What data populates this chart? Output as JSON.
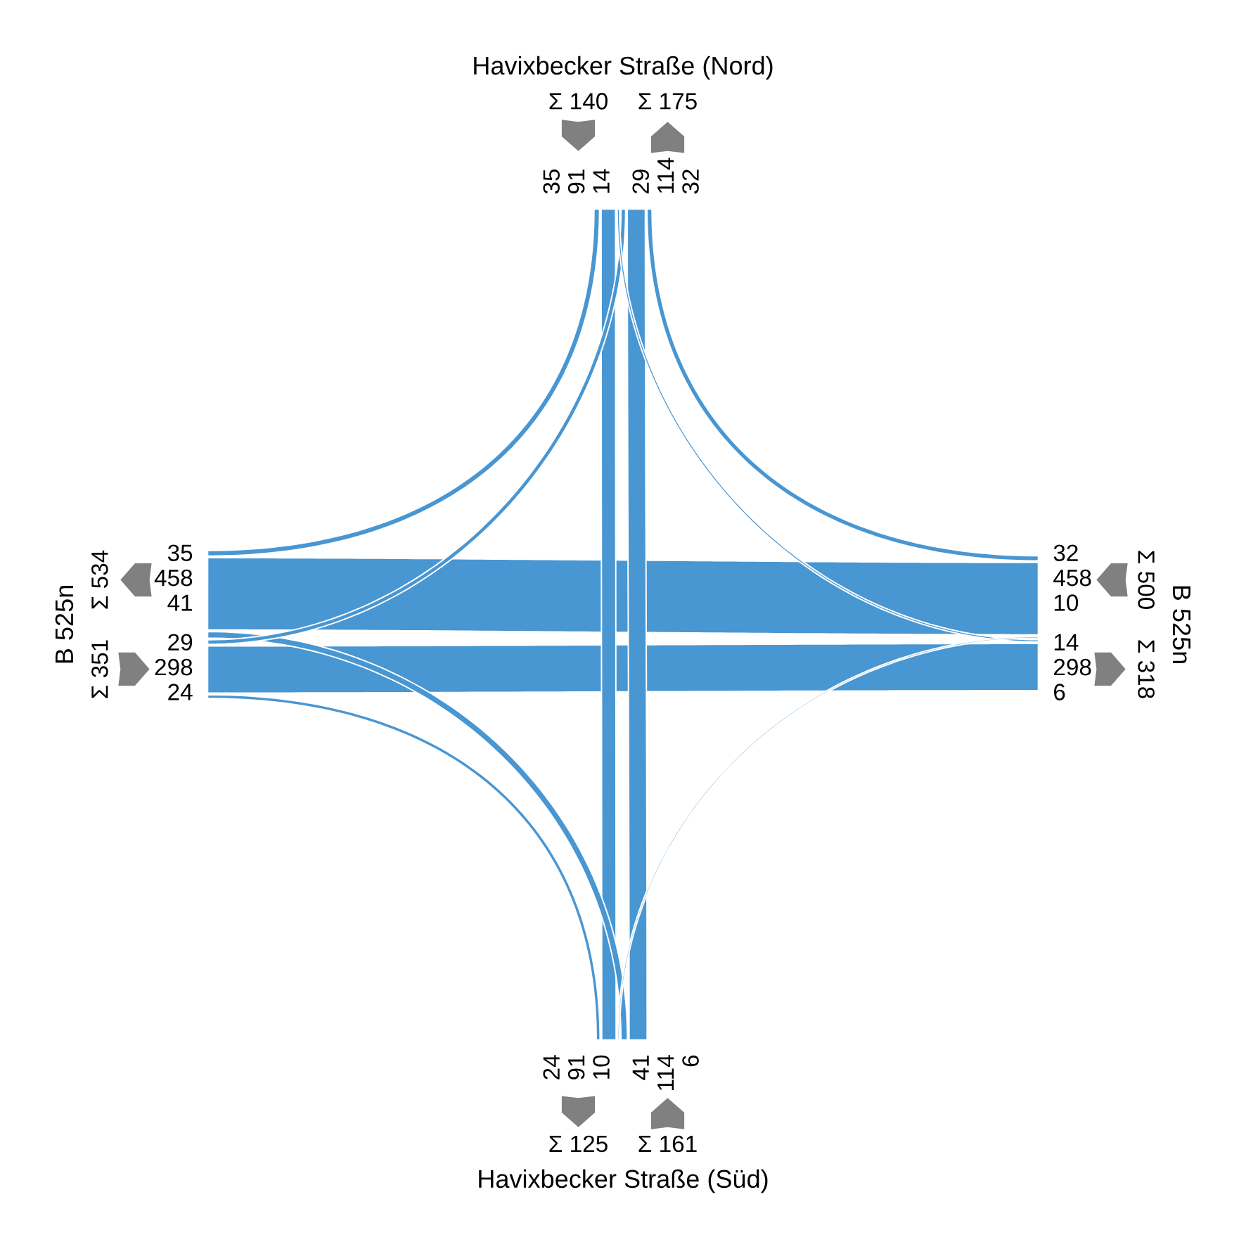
{
  "chart_data": {
    "type": "other",
    "categories": [
      "Havixbecker Straße (Nord)",
      "B 525n",
      "B 525n",
      "Havixbecker Straße (Süd)"
    ],
    "series": [
      {
        "color": "#4896d2",
        "values": [
          null,
          35,
          14,
          91
        ]
      },
      {
        "color": "#4896d2",
        "values": [
          29,
          null,
          298,
          24
        ]
      },
      {
        "color": "#4896d2",
        "values": [
          32,
          458,
          null,
          10
        ]
      },
      {
        "color": "#4896d2",
        "values": [
          114,
          41,
          6,
          null
        ]
      }
    ],
    "data_labels": true,
    "annotations": [
      "29",
      "114",
      "32",
      "35",
      "458",
      "41",
      "14",
      "298",
      "6",
      "24",
      "91",
      "10"
    ],
    "totals": [
      "Σ 140",
      "Σ 175",
      "Σ 534",
      "Σ 351",
      "Σ 500",
      "Σ 318",
      "Σ 125",
      "Σ 161"
    ]
  }
}
